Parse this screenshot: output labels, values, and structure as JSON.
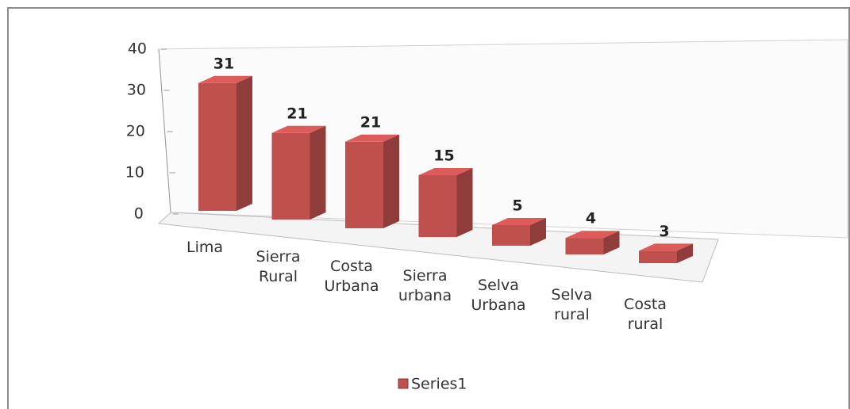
{
  "chart_data": {
    "type": "bar3d",
    "categories": [
      "Lima",
      "Sierra Rural",
      "Costa Urbana",
      "Sierra urbana",
      "Selva Urbana",
      "Selva rural",
      "Costa rural"
    ],
    "series": [
      {
        "name": "Series1",
        "color": "#c0504d",
        "values": [
          31,
          21,
          21,
          15,
          5,
          4,
          3
        ]
      }
    ],
    "ylim": [
      0,
      40
    ],
    "yticks": [
      0,
      10,
      20,
      30,
      40
    ],
    "legend": "bottom"
  }
}
